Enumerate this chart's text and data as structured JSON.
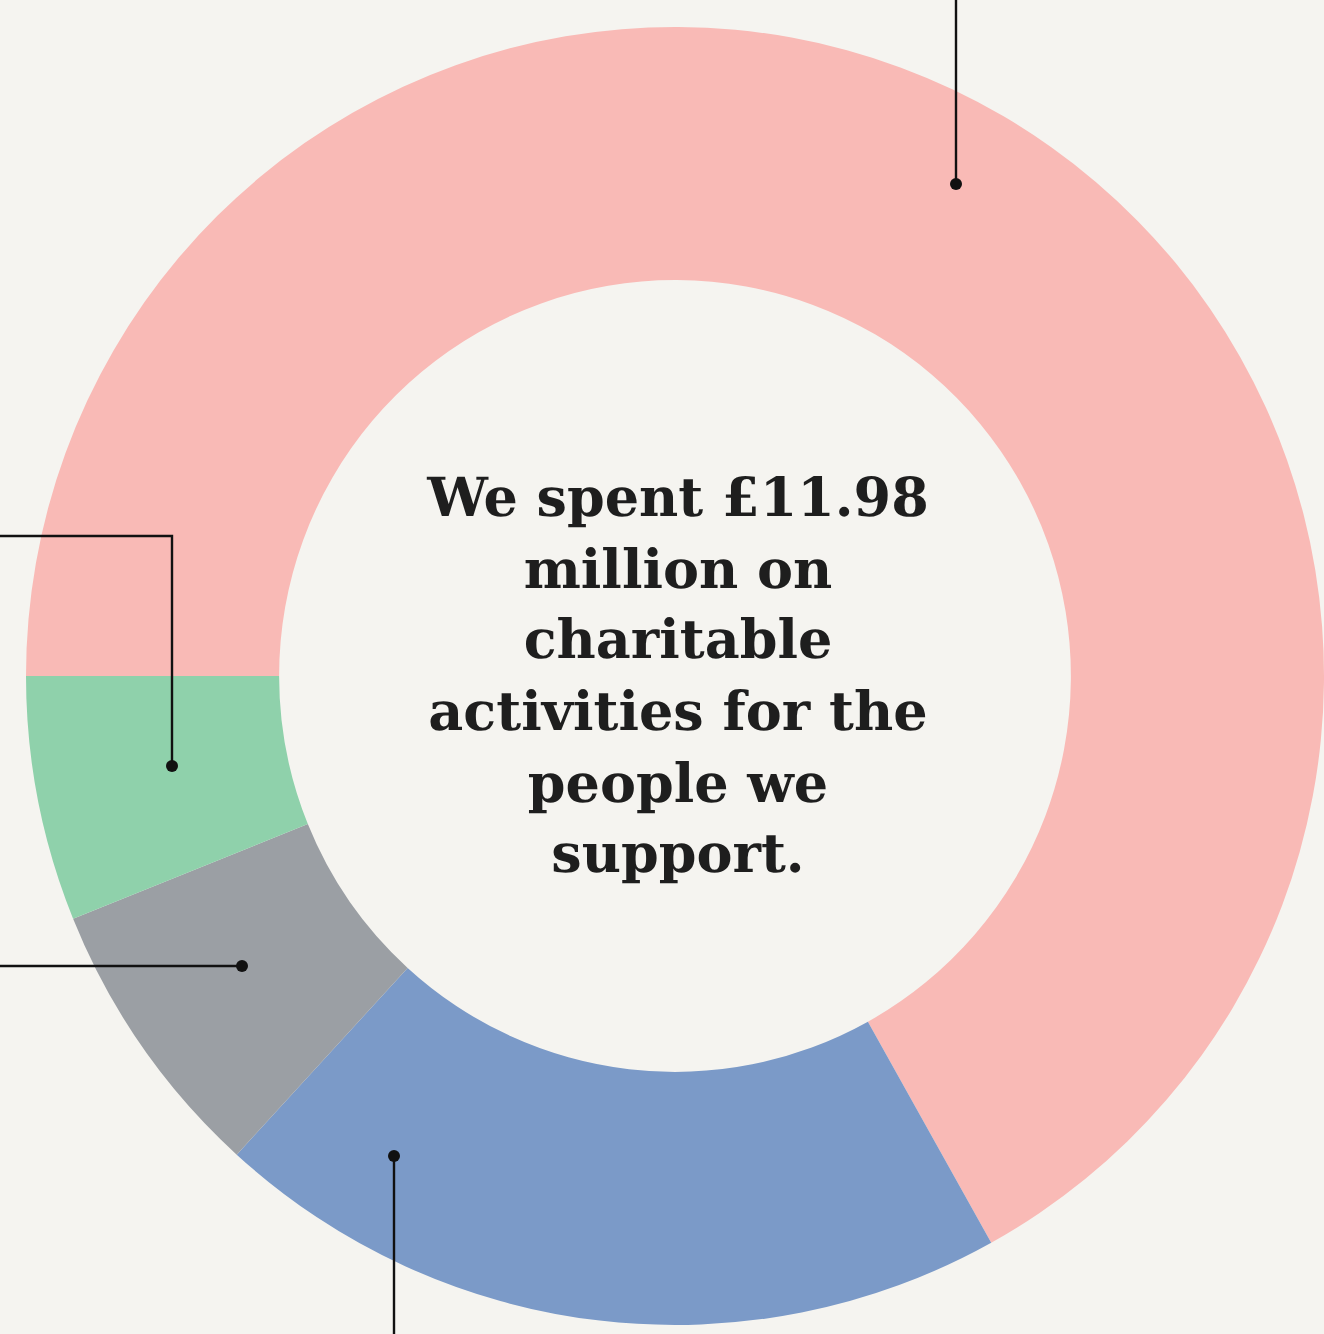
{
  "chart_data": {
    "type": "donut",
    "categories": [
      null,
      null,
      null,
      null
    ],
    "values": [
      66.9,
      19.9,
      7.1,
      6.1
    ],
    "colors": [
      "#f9bab6",
      "#7b9ac8",
      "#9b9fa4",
      "#8fd1ab"
    ],
    "annotations": [
      "We spent £11.98 million on charitable activities for the people we support."
    ],
    "legend": false
  }
}
